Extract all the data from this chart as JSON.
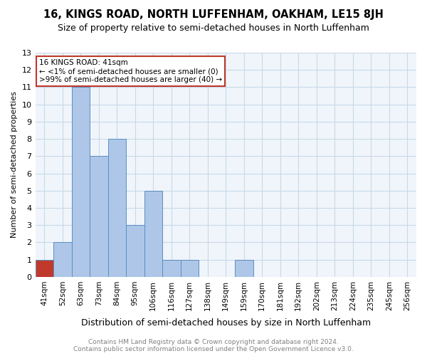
{
  "title": "16, KINGS ROAD, NORTH LUFFENHAM, OAKHAM, LE15 8JH",
  "subtitle": "Size of property relative to semi-detached houses in North Luffenham",
  "xlabel": "Distribution of semi-detached houses by size in North Luffenham",
  "ylabel": "Number of semi-detached properties",
  "footnote": "Contains HM Land Registry data © Crown copyright and database right 2024.\nContains public sector information licensed under the Open Government Licence v3.0.",
  "bins": [
    "41sqm",
    "52sqm",
    "63sqm",
    "73sqm",
    "84sqm",
    "95sqm",
    "106sqm",
    "116sqm",
    "127sqm",
    "138sqm",
    "149sqm",
    "159sqm",
    "170sqm",
    "181sqm",
    "192sqm",
    "202sqm",
    "213sqm",
    "224sqm",
    "235sqm",
    "245sqm",
    "256sqm"
  ],
  "counts": [
    1,
    2,
    11,
    7,
    8,
    3,
    5,
    1,
    1,
    0,
    0,
    1,
    0,
    0,
    0,
    0,
    0,
    0,
    0,
    0,
    0
  ],
  "highlight_bin_index": 0,
  "highlight_color": "#c0392b",
  "bar_color": "#aec6e8",
  "bar_edge_color": "#5a8fc0",
  "ylim": [
    0,
    13
  ],
  "yticks": [
    0,
    1,
    2,
    3,
    4,
    5,
    6,
    7,
    8,
    9,
    10,
    11,
    12,
    13
  ],
  "annotation_title": "16 KINGS ROAD: 41sqm",
  "annotation_line1": "← <1% of semi-detached houses are smaller (0)",
  "annotation_line2": ">99% of semi-detached houses are larger (40) →",
  "annotation_box_color": "#c0392b",
  "grid_color": "#c8d8e8",
  "bg_color": "#f0f5fb"
}
